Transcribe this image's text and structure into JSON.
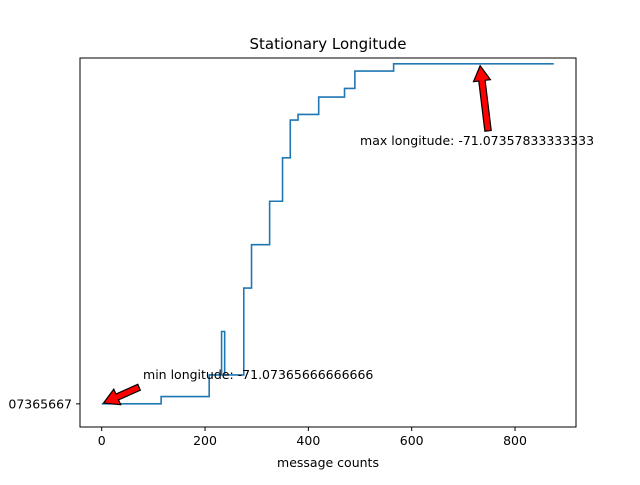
{
  "chart_data": {
    "type": "line",
    "title": "Stationary Longitude",
    "xlabel": "message counts",
    "ylabel": "",
    "xlim": [
      -42,
      918
    ],
    "ylim": [
      -71.073662,
      -71.073577
    ],
    "xticks": [
      0,
      200,
      400,
      600,
      800
    ],
    "ytick_values": [
      -71.07365667
    ],
    "ytick_labels": [
      "07365667"
    ],
    "grid": false,
    "line_color": "#1f77b4",
    "series": [
      {
        "x": [
          0,
          115,
          115,
          208,
          208,
          232,
          232,
          238,
          238,
          275,
          275,
          284,
          284,
          290,
          290,
          300,
          300,
          325,
          325,
          334,
          334,
          350,
          350,
          365,
          365,
          368,
          368,
          380,
          380,
          420,
          420,
          470,
          470,
          490,
          490,
          520,
          520,
          530,
          530,
          565,
          565,
          620,
          620,
          628,
          628,
          640,
          640,
          660,
          660,
          690,
          690,
          712,
          712,
          720,
          720,
          732,
          732,
          875
        ],
        "y": [
          -71.07365667,
          -71.07365667,
          -71.073655,
          -71.073655,
          -71.07365,
          -71.07365,
          -71.07364,
          -71.07364,
          -71.07365,
          -71.07365,
          -71.07363,
          -71.07363,
          -71.07363,
          -71.07363,
          -71.07362,
          -71.07362,
          -71.07362,
          -71.07362,
          -71.07361,
          -71.07361,
          -71.07361,
          -71.07361,
          -71.0736,
          -71.0736,
          -71.0735913,
          -71.0735913,
          -71.0735913,
          -71.0735913,
          -71.07359,
          -71.07359,
          -71.073586,
          -71.073586,
          -71.073584,
          -71.073584,
          -71.07358,
          -71.07358,
          -71.07358,
          -71.07358,
          -71.07358,
          -71.07358,
          -71.07357833,
          -71.07357833,
          -71.07357833,
          -71.07357833,
          -71.07357833,
          -71.07357833,
          -71.07357833,
          -71.07357833,
          -71.07357833,
          -71.07357833,
          -71.07357833,
          -71.07357833,
          -71.07357833,
          -71.07357833,
          -71.07357833,
          -71.07357833,
          -71.07357833,
          -71.07357833
        ]
      }
    ],
    "annotations": [
      {
        "text": "min longitude: -71.07365666666666",
        "point": [
          0,
          -71.07365667
        ],
        "text_pos": [
          80,
          -71.073651
        ]
      },
      {
        "text": "max longitude: -71.07357833333333",
        "point": [
          732,
          -71.07357833
        ],
        "text_pos": [
          500,
          -71.073597
        ]
      }
    ]
  }
}
